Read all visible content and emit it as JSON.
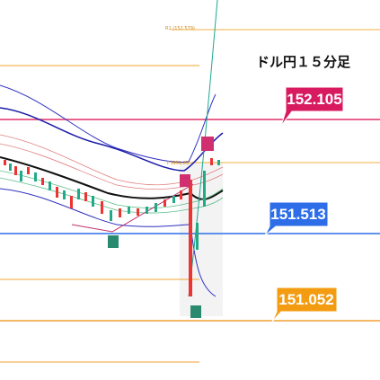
{
  "title": "ドル円１５分足",
  "level_labels": {
    "r1": "R1 (152.579)",
    "pivot": "P (151.83"
  },
  "price_tags": [
    "152.105",
    "151.513",
    "151.052"
  ]
}
